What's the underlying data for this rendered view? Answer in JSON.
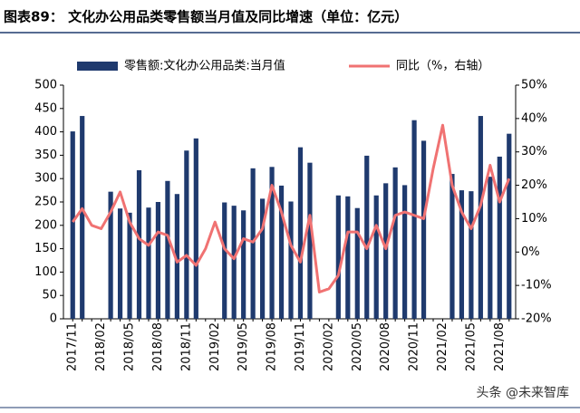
{
  "chart_data": {
    "type": "bar-line",
    "title": "图表89：  文化办公用品类零售额当月值及同比增速（单位：亿元）",
    "watermark": "头条 @未来智库",
    "categories": [
      "2017/11",
      null,
      null,
      "2018/02",
      null,
      null,
      "2018/05",
      null,
      null,
      "2018/08",
      null,
      null,
      "2018/11",
      null,
      null,
      "2019/02",
      null,
      null,
      "2019/05",
      null,
      null,
      "2019/08",
      null,
      null,
      "2019/11",
      null,
      null,
      "2020/02",
      null,
      null,
      "2020/05",
      null,
      null,
      "2020/08",
      null,
      null,
      "2020/11",
      null,
      null,
      "2021/02",
      null,
      null,
      "2021/05",
      null,
      null,
      "2021/08",
      null
    ],
    "series": [
      {
        "name": "零售额:文化办公用品类:当月值",
        "type": "bar",
        "color": "#1f3a6e",
        "values": [
          401,
          434,
          null,
          null,
          272,
          236,
          227,
          318,
          238,
          250,
          295,
          267,
          360,
          386,
          null,
          null,
          249,
          242,
          232,
          322,
          257,
          325,
          285,
          251,
          367,
          334,
          null,
          null,
          264,
          262,
          237,
          349,
          264,
          290,
          324,
          286,
          425,
          381,
          null,
          null,
          310,
          275,
          273,
          434,
          304,
          347,
          396
        ]
      },
      {
        "name": "同比（%，右轴）",
        "type": "line",
        "axis": "y2",
        "color": "#f07272",
        "values": [
          9,
          13,
          8,
          7,
          12,
          18,
          9,
          4,
          2,
          6,
          5,
          -3,
          -1,
          -4,
          1,
          9,
          1,
          -2,
          4,
          3,
          7,
          20,
          12,
          2,
          -3,
          11,
          -12,
          -11,
          -7,
          6,
          6,
          1,
          8,
          1,
          11,
          12,
          11,
          10,
          25,
          38,
          20,
          12,
          7,
          14,
          26,
          15,
          22
        ]
      }
    ],
    "ylim": [
      0,
      500
    ],
    "yticks": [
      0,
      50,
      100,
      150,
      200,
      250,
      300,
      350,
      400,
      450,
      500
    ],
    "y2lim": [
      -20,
      50
    ],
    "y2ticks": [
      {
        "value": -20,
        "label": "-20%"
      },
      {
        "value": -10,
        "label": "-10%"
      },
      {
        "value": 0,
        "label": "0%"
      },
      {
        "value": 10,
        "label": "10%"
      },
      {
        "value": 20,
        "label": "20%"
      },
      {
        "value": 30,
        "label": "30%"
      },
      {
        "value": 40,
        "label": "40%"
      },
      {
        "value": 50,
        "label": "50%"
      }
    ]
  }
}
